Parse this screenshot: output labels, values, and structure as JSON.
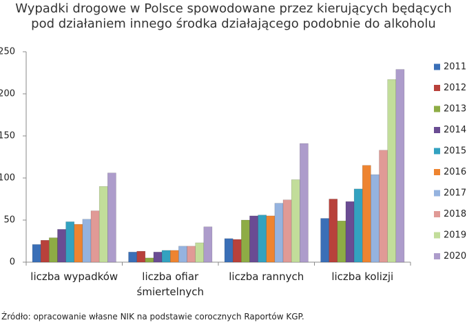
{
  "chart_data": {
    "type": "bar",
    "title": "Wypadki drogowe w Polsce spowodowane przez kierujących będących pod działaniem innego środka działającego podobnie do alkoholu",
    "source": "Źródło: opracowanie własne NIK na podstawie corocznych Raportów KGP.",
    "categories": [
      "liczba wypadków",
      "liczba ofiar śmiertelnych",
      "liczba rannych",
      "liczba kolizji"
    ],
    "series": [
      {
        "name": "2011",
        "color": "#3a6fb7",
        "values": [
          21,
          12,
          28,
          52
        ]
      },
      {
        "name": "2012",
        "color": "#b8413b",
        "values": [
          26,
          13,
          27,
          75
        ]
      },
      {
        "name": "2013",
        "color": "#8eac45",
        "values": [
          29,
          5,
          50,
          49
        ]
      },
      {
        "name": "2014",
        "color": "#6a4c93",
        "values": [
          39,
          12,
          55,
          72
        ]
      },
      {
        "name": "2015",
        "color": "#33a2c0",
        "values": [
          48,
          14,
          56,
          87
        ]
      },
      {
        "name": "2016",
        "color": "#ee8430",
        "values": [
          45,
          14,
          55,
          115
        ]
      },
      {
        "name": "2017",
        "color": "#95b3df",
        "values": [
          51,
          19,
          70,
          104
        ]
      },
      {
        "name": "2018",
        "color": "#e09a96",
        "values": [
          61,
          19,
          74,
          133
        ]
      },
      {
        "name": "2019",
        "color": "#c2dd9a",
        "values": [
          90,
          23,
          98,
          217
        ]
      },
      {
        "name": "2020",
        "color": "#ad9ccb",
        "values": [
          106,
          42,
          141,
          229
        ]
      }
    ],
    "ylim": [
      0,
      250
    ],
    "yticks": [
      0,
      50,
      100,
      150,
      200,
      250
    ],
    "grid": false
  }
}
